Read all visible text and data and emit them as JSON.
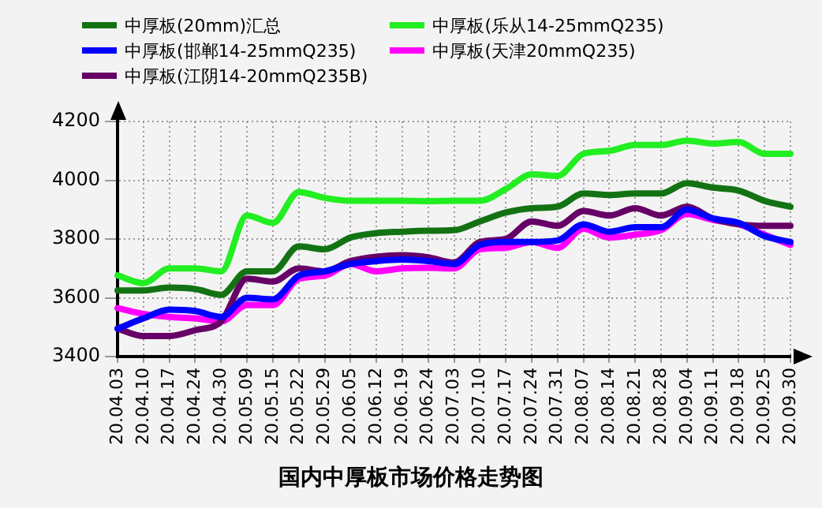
{
  "chart_data": {
    "type": "line",
    "title": "国内中厚板市场价格走势图",
    "categories": [
      "20.04.03",
      "20.04.10",
      "20.04.17",
      "20.04.24",
      "20.04.30",
      "20.05.09",
      "20.05.15",
      "20.05.22",
      "20.05.29",
      "20.06.05",
      "20.06.12",
      "20.06.19",
      "20.06.24",
      "20.07.03",
      "20.07.10",
      "20.07.17",
      "20.07.24",
      "20.07.31",
      "20.08.07",
      "20.08.14",
      "20.08.21",
      "20.08.28",
      "20.09.04",
      "20.09.11",
      "20.09.18",
      "20.09.25",
      "20.09.30"
    ],
    "series": [
      {
        "name": "中厚板(20mm)汇总",
        "color": "#137313",
        "values": [
          3625,
          3625,
          3635,
          3630,
          3610,
          3690,
          3690,
          3775,
          3765,
          3805,
          3820,
          3825,
          3828,
          3830,
          3860,
          3890,
          3905,
          3910,
          3955,
          3950,
          3955,
          3955,
          3990,
          3975,
          3965,
          3930,
          3910
        ]
      },
      {
        "name": "中厚板(邯郸14-25mmQ235)",
        "color": "#0000ff",
        "values": [
          3495,
          3530,
          3560,
          3555,
          3535,
          3600,
          3595,
          3675,
          3690,
          3715,
          3725,
          3730,
          3725,
          3715,
          3780,
          3790,
          3790,
          3795,
          3850,
          3825,
          3840,
          3840,
          3900,
          3870,
          3855,
          3810,
          3790
        ]
      },
      {
        "name": "中厚板(江阴14-20mmQ235B)",
        "color": "#660066",
        "values": [
          3495,
          3470,
          3470,
          3490,
          3520,
          3665,
          3655,
          3700,
          3690,
          3725,
          3740,
          3745,
          3738,
          3720,
          3790,
          3800,
          3860,
          3845,
          3895,
          3880,
          3905,
          3880,
          3910,
          3870,
          3850,
          3845,
          3845
        ]
      },
      {
        "name": "中厚板(乐从14-25mmQ235)",
        "color": "#22ee22",
        "values": [
          3676,
          3650,
          3700,
          3700,
          3690,
          3880,
          3855,
          3960,
          3940,
          3930,
          3930,
          3930,
          3929,
          3930,
          3930,
          3970,
          4020,
          4015,
          4090,
          4100,
          4120,
          4120,
          4135,
          4125,
          4130,
          4090,
          4090
        ]
      },
      {
        "name": "中厚板(天津20mmQ235)",
        "color": "#ff00ff",
        "values": [
          3565,
          3545,
          3535,
          3530,
          3520,
          3575,
          3575,
          3665,
          3675,
          3715,
          3690,
          3700,
          3702,
          3700,
          3765,
          3770,
          3790,
          3770,
          3835,
          3805,
          3815,
          3830,
          3885,
          3865,
          3850,
          3815,
          3780
        ]
      }
    ],
    "ylim": [
      3400,
      4200
    ],
    "yticks": [
      3400,
      3600,
      3800,
      4000,
      4200
    ],
    "grid": true,
    "legend": "top",
    "marker": "none",
    "line_style": "solid"
  }
}
